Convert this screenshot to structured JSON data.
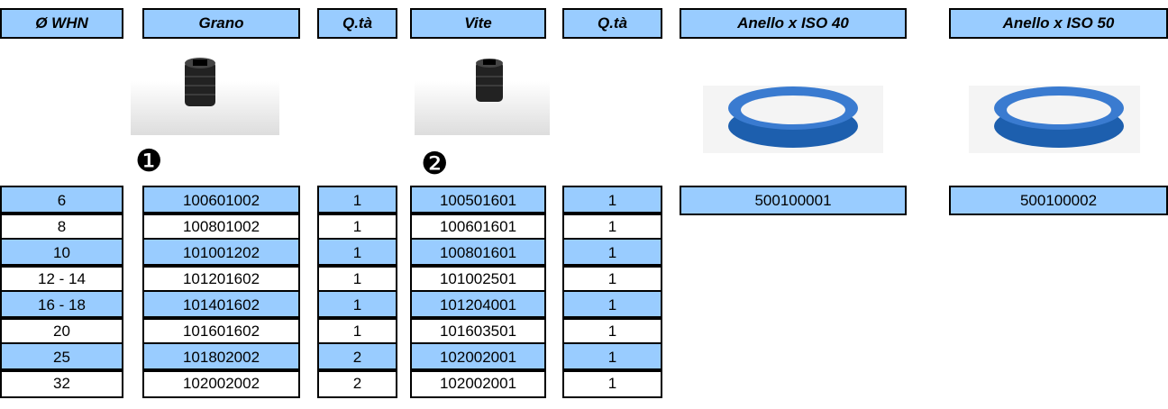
{
  "table": {
    "headers": [
      "Ø WHN",
      "Grano",
      "Q.tà",
      "Vite",
      "Q.tà",
      "Anello x ISO 40",
      "Anello x ISO 50"
    ],
    "markers": [
      "❶",
      "❷"
    ],
    "rows": [
      [
        "6",
        "100601002",
        "1",
        "100501601",
        "1"
      ],
      [
        "8",
        "100801002",
        "1",
        "100601601",
        "1"
      ],
      [
        "10",
        "101001202",
        "1",
        "100801601",
        "1"
      ],
      [
        "12 - 14",
        "101201602",
        "1",
        "101002501",
        "1"
      ],
      [
        "16 - 18",
        "101401602",
        "1",
        "101204001",
        "1"
      ],
      [
        "20",
        "101601602",
        "1",
        "101603501",
        "1"
      ],
      [
        "25",
        "101802002",
        "2",
        "102002001",
        "1"
      ],
      [
        "32",
        "102002002",
        "2",
        "102002001",
        "1"
      ]
    ],
    "rings": [
      "500100001",
      "500100002"
    ]
  }
}
